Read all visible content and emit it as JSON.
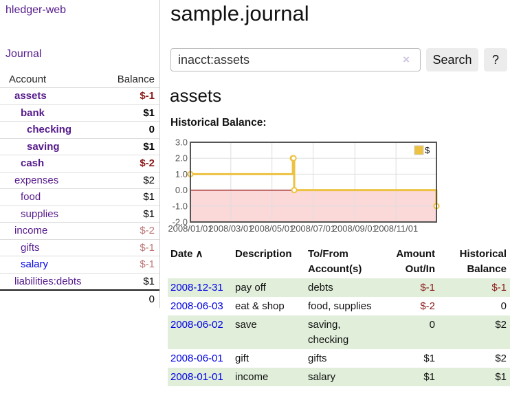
{
  "app": {
    "brand": "hledger-web",
    "nav_journal": "Journal"
  },
  "sidebar": {
    "header": {
      "account": "Account",
      "balance": "Balance"
    },
    "accounts": [
      {
        "name": "assets",
        "indent": 0,
        "bold": true,
        "color": "purple",
        "balance": "$-1",
        "balance_style": "neg"
      },
      {
        "name": "bank",
        "indent": 1,
        "bold": true,
        "color": "purple",
        "balance": "$1",
        "balance_style": ""
      },
      {
        "name": "checking",
        "indent": 2,
        "bold": true,
        "color": "purple",
        "balance": "0",
        "balance_style": ""
      },
      {
        "name": "saving",
        "indent": 2,
        "bold": true,
        "color": "purple",
        "balance": "$1",
        "balance_style": ""
      },
      {
        "name": "cash",
        "indent": 1,
        "bold": true,
        "color": "purple",
        "balance": "$-2",
        "balance_style": "neg"
      },
      {
        "name": "expenses",
        "indent": 0,
        "bold": false,
        "color": "purple",
        "balance": "$2",
        "balance_style": ""
      },
      {
        "name": "food",
        "indent": 1,
        "bold": false,
        "color": "purple",
        "balance": "$1",
        "balance_style": ""
      },
      {
        "name": "supplies",
        "indent": 1,
        "bold": false,
        "color": "purple",
        "balance": "$1",
        "balance_style": ""
      },
      {
        "name": "income",
        "indent": 0,
        "bold": false,
        "color": "purple",
        "balance": "$-2",
        "balance_style": "negsoft"
      },
      {
        "name": "gifts",
        "indent": 1,
        "bold": false,
        "color": "purple",
        "balance": "$-1",
        "balance_style": "negsoft"
      },
      {
        "name": "salary",
        "indent": 1,
        "bold": false,
        "color": "blue",
        "balance": "$-1",
        "balance_style": "negsoft"
      },
      {
        "name": "liabilities:debts",
        "indent": 0,
        "bold": false,
        "color": "purple",
        "balance": "$1",
        "balance_style": ""
      }
    ],
    "total": "0"
  },
  "main": {
    "title": "sample.journal",
    "search": {
      "value": "inacct:assets",
      "clear_icon": "×",
      "search_label": "Search",
      "help_label": "?"
    },
    "account_heading": "assets",
    "chart_heading": "Historical Balance:"
  },
  "chart_data": {
    "type": "line",
    "style": "step-after",
    "title": "Historical Balance:",
    "series": [
      {
        "name": "$",
        "color": "#edc240",
        "points": [
          [
            "2008-01-01",
            1
          ],
          [
            "2008-06-01",
            2
          ],
          [
            "2008-06-02",
            2
          ],
          [
            "2008-06-03",
            0
          ],
          [
            "2008-12-31",
            -1
          ]
        ]
      }
    ],
    "x_range": [
      "2008-01-01",
      "2008-12-31"
    ],
    "x_tick_labels": [
      "2008/01/01",
      "2008/03/01",
      "2008/05/01",
      "2008/07/01",
      "2008/09/01",
      "2008/11/01"
    ],
    "y_ticks": [
      3,
      2,
      1,
      0,
      -1,
      -2
    ],
    "y_tick_labels": [
      "3.0",
      "2.0",
      "1.0",
      "0.0",
      "-1.0",
      "-2.0"
    ],
    "ylim": [
      -2,
      3
    ],
    "grid": true,
    "legend_position": "top-right",
    "colors": {
      "line": "#edc240",
      "negative_region_fill": "#fbd9d9",
      "zero_line": "#8b0000",
      "border": "#545454",
      "gridline": "#dddddd",
      "tick_text": "#545454"
    }
  },
  "table": {
    "sort_icon": "∧",
    "headers": [
      {
        "lines": [
          "Date"
        ],
        "align": "left",
        "sort": "asc"
      },
      {
        "lines": [
          "Description"
        ],
        "align": "left"
      },
      {
        "lines": [
          "To/From",
          "Account(s)"
        ],
        "align": "left"
      },
      {
        "lines": [
          "Amount",
          "Out/In"
        ],
        "align": "right"
      },
      {
        "lines": [
          "Historical",
          "Balance"
        ],
        "align": "right"
      }
    ],
    "rows": [
      {
        "date": "2008-12-31",
        "description": "pay off",
        "accounts": "debts",
        "amount": "$-1",
        "amount_neg": true,
        "balance": "$-1",
        "balance_neg": true
      },
      {
        "date": "2008-06-03",
        "description": "eat & shop",
        "accounts": "food, supplies",
        "amount": "$-2",
        "amount_neg": true,
        "balance": "0",
        "balance_neg": false
      },
      {
        "date": "2008-06-02",
        "description": "save",
        "accounts": "saving, checking",
        "amount": "0",
        "amount_neg": false,
        "balance": "$2",
        "balance_neg": false
      },
      {
        "date": "2008-06-01",
        "description": "gift",
        "accounts": "gifts",
        "amount": "$1",
        "amount_neg": false,
        "balance": "$2",
        "balance_neg": false
      },
      {
        "date": "2008-01-01",
        "description": "income",
        "accounts": "salary",
        "amount": "$1",
        "amount_neg": false,
        "balance": "$1",
        "balance_neg": false
      }
    ]
  }
}
